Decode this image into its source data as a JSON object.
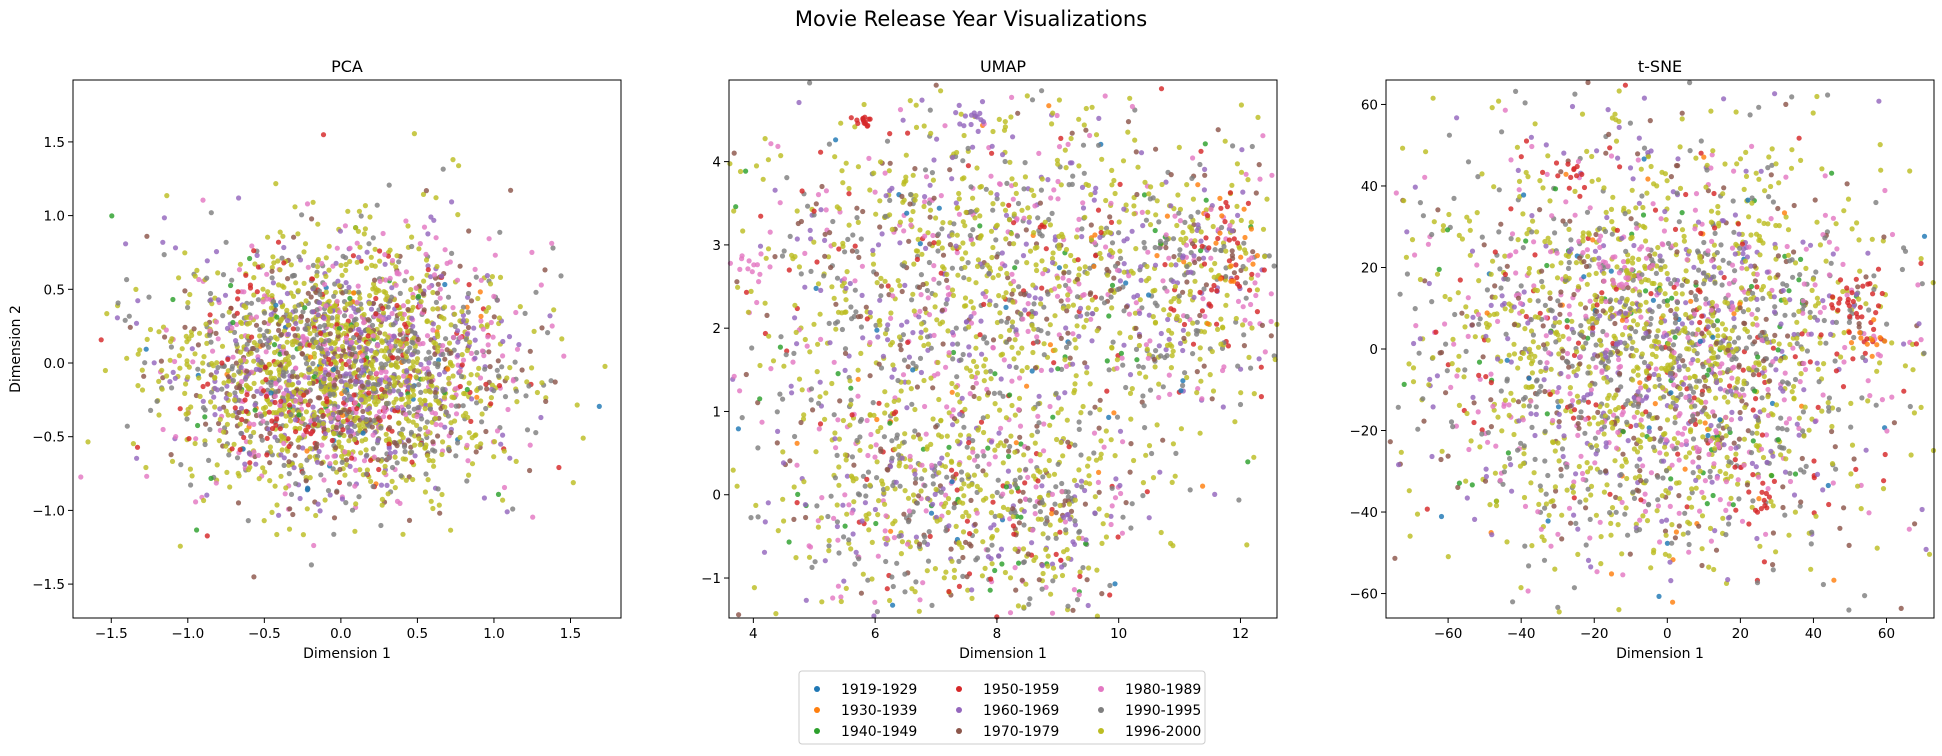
{
  "figure": {
    "title": "Movie Release Year Visualizations"
  },
  "legend": {
    "placement": "bottom-center",
    "columns": 3,
    "entries": [
      {
        "label": "1919-1929",
        "color": "#1f77b4"
      },
      {
        "label": "1930-1939",
        "color": "#ff7f0e"
      },
      {
        "label": "1940-1949",
        "color": "#2ca02c"
      },
      {
        "label": "1950-1959",
        "color": "#d62728"
      },
      {
        "label": "1960-1969",
        "color": "#9467bd"
      },
      {
        "label": "1970-1979",
        "color": "#8c564b"
      },
      {
        "label": "1980-1989",
        "color": "#e377c2"
      },
      {
        "label": "1990-1995",
        "color": "#7f7f7f"
      },
      {
        "label": "1996-2000",
        "color": "#bcbd22"
      }
    ]
  },
  "chart_data": [
    {
      "type": "scatter",
      "title": "PCA",
      "xlabel": "Dimension 1",
      "ylabel": "Dimension 2",
      "xlim": [
        -1.75,
        1.83
      ],
      "ylim": [
        -1.73,
        1.92
      ],
      "xticks": [
        -1.5,
        -1.0,
        -0.5,
        0.0,
        0.5,
        1.0,
        1.5
      ],
      "xticklabels": [
        "−1.5",
        "−1.0",
        "−0.5",
        "0.0",
        "0.5",
        "1.0",
        "1.5"
      ],
      "yticks": [
        -1.5,
        -1.0,
        -0.5,
        0.0,
        0.5,
        1.0,
        1.5
      ],
      "yticklabels": [
        "−1.5",
        "−1.0",
        "−0.5",
        "0.0",
        "0.5",
        "1.0",
        "1.5"
      ],
      "grid": false,
      "cloud": [
        {
          "cx": 0.0,
          "cy": -0.05,
          "sx": 0.55,
          "sy": 0.42,
          "w": 1.0
        }
      ],
      "clusters": [
        {
          "series": 3,
          "cx": -0.4,
          "cy": -0.45,
          "sx": 0.2,
          "sy": 0.12,
          "n": 25
        },
        {
          "series": 6,
          "cx": 0.6,
          "cy": 0.6,
          "sx": 0.3,
          "sy": 0.25,
          "n": 30
        }
      ],
      "n_points": 2600
    },
    {
      "type": "scatter",
      "title": "UMAP",
      "xlabel": "Dimension 1",
      "ylabel": "",
      "xlim": [
        3.6,
        12.6
      ],
      "ylim": [
        -1.48,
        4.98
      ],
      "xticks": [
        4,
        6,
        8,
        10,
        12
      ],
      "xticklabels": [
        "4",
        "6",
        "8",
        "10",
        "12"
      ],
      "yticks": [
        -1,
        0,
        1,
        2,
        3,
        4
      ],
      "yticklabels": [
        "−1",
        "0",
        "1",
        "2",
        "3",
        "4"
      ],
      "grid": false,
      "cloud": [
        {
          "cx": 8.0,
          "cy": 2.6,
          "sx": 2.2,
          "sy": 1.1,
          "w": 0.55
        },
        {
          "cx": 6.8,
          "cy": 0.1,
          "sx": 1.3,
          "sy": 0.75,
          "w": 0.25
        },
        {
          "cx": 8.9,
          "cy": -0.4,
          "sx": 0.7,
          "sy": 0.5,
          "w": 0.1
        },
        {
          "cx": 11.3,
          "cy": 2.6,
          "sx": 0.7,
          "sy": 0.7,
          "w": 0.1
        }
      ],
      "clusters": [
        {
          "series": 3,
          "cx": 5.8,
          "cy": 4.5,
          "sx": 0.08,
          "sy": 0.05,
          "n": 14
        },
        {
          "series": 3,
          "cx": 11.9,
          "cy": 2.8,
          "sx": 0.3,
          "sy": 0.4,
          "n": 30
        },
        {
          "series": 1,
          "cx": 11.8,
          "cy": 3.0,
          "sx": 0.3,
          "sy": 0.4,
          "n": 14
        },
        {
          "series": 4,
          "cx": 7.6,
          "cy": 4.55,
          "sx": 0.15,
          "sy": 0.06,
          "n": 14
        },
        {
          "series": 6,
          "cx": 4.0,
          "cy": 2.7,
          "sx": 0.15,
          "sy": 0.1,
          "n": 10
        }
      ],
      "n_points": 2600
    },
    {
      "type": "scatter",
      "title": "t-SNE",
      "xlabel": "Dimension 1",
      "ylabel": "",
      "xlim": [
        -77,
        73
      ],
      "ylim": [
        -66,
        66
      ],
      "xticks": [
        -60,
        -40,
        -20,
        0,
        20,
        40,
        60
      ],
      "xticklabels": [
        "−60",
        "−40",
        "−20",
        "0",
        "20",
        "40",
        "60"
      ],
      "yticks": [
        -60,
        -40,
        -20,
        0,
        20,
        40,
        60
      ],
      "yticklabels": [
        "−60",
        "−40",
        "−20",
        "0",
        "20",
        "40",
        "60"
      ],
      "grid": false,
      "cloud": [
        {
          "cx": -2.0,
          "cy": 0.0,
          "sx": 31.0,
          "sy": 25.0,
          "w": 1.0
        }
      ],
      "clusters": [
        {
          "series": 3,
          "cx": 53,
          "cy": 8,
          "sx": 5,
          "sy": 5,
          "n": 35
        },
        {
          "series": 1,
          "cx": 55,
          "cy": 2,
          "sx": 3,
          "sy": 3,
          "n": 10
        },
        {
          "series": 3,
          "cx": 25,
          "cy": -38,
          "sx": 3,
          "sy": 2.5,
          "n": 14
        },
        {
          "series": 3,
          "cx": -28,
          "cy": 44,
          "sx": 3,
          "sy": 2,
          "n": 10
        },
        {
          "series": 6,
          "cx": -12,
          "cy": 20,
          "sx": 6,
          "sy": 4,
          "n": 22
        },
        {
          "series": 6,
          "cx": 12,
          "cy": -25,
          "sx": 6,
          "sy": 6,
          "n": 22
        }
      ],
      "n_points": 2600
    }
  ]
}
